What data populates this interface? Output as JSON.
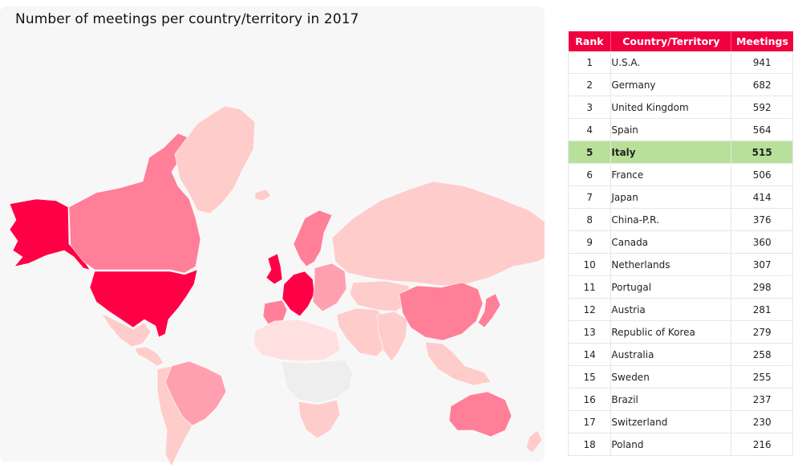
{
  "title": "Number of meetings per country/territory in 2017",
  "colors": {
    "accent": "#f0003f",
    "highlight": "#b8e09a",
    "max": "#ff0046",
    "high": "#ff7f99",
    "mid": "#ffa0b0",
    "low": "#ffcccc",
    "lowest": "#ffe0e0",
    "nodata": "#eeeeee"
  },
  "map": {
    "regions": [
      {
        "name": "Alaska",
        "level": "max"
      },
      {
        "name": "Canada",
        "level": "high"
      },
      {
        "name": "Greenland",
        "level": "low"
      },
      {
        "name": "USA",
        "level": "max"
      },
      {
        "name": "Mexico",
        "level": "low"
      },
      {
        "name": "Central America",
        "level": "low"
      },
      {
        "name": "Brazil",
        "level": "mid"
      },
      {
        "name": "South America",
        "level": "low"
      },
      {
        "name": "Iceland",
        "level": "low"
      },
      {
        "name": "Scandinavia",
        "level": "high"
      },
      {
        "name": "UK",
        "level": "max"
      },
      {
        "name": "Western Europe",
        "level": "max"
      },
      {
        "name": "Iberia",
        "level": "high"
      },
      {
        "name": "Eastern Europe",
        "level": "mid"
      },
      {
        "name": "Russia",
        "level": "low"
      },
      {
        "name": "Middle East",
        "level": "low"
      },
      {
        "name": "North Africa",
        "level": "lowest"
      },
      {
        "name": "Central Africa",
        "level": "nodata"
      },
      {
        "name": "Southern Africa",
        "level": "low"
      },
      {
        "name": "Central Asia",
        "level": "low"
      },
      {
        "name": "India",
        "level": "low"
      },
      {
        "name": "China",
        "level": "high"
      },
      {
        "name": "Japan",
        "level": "high"
      },
      {
        "name": "Southeast Asia",
        "level": "low"
      },
      {
        "name": "Australia",
        "level": "high"
      },
      {
        "name": "New Zealand",
        "level": "low"
      }
    ]
  },
  "table": {
    "headers": [
      "Rank",
      "Country/Territory",
      "Meetings"
    ],
    "rows": [
      {
        "rank": "1",
        "country": "U.S.A.",
        "meetings": "941"
      },
      {
        "rank": "2",
        "country": "Germany",
        "meetings": "682"
      },
      {
        "rank": "3",
        "country": "United Kingdom",
        "meetings": "592"
      },
      {
        "rank": "4",
        "country": "Spain",
        "meetings": "564"
      },
      {
        "rank": "5",
        "country": "Italy",
        "meetings": "515",
        "highlight": true
      },
      {
        "rank": "6",
        "country": "France",
        "meetings": "506"
      },
      {
        "rank": "7",
        "country": "Japan",
        "meetings": "414"
      },
      {
        "rank": "8",
        "country": "China-P.R.",
        "meetings": "376"
      },
      {
        "rank": "9",
        "country": "Canada",
        "meetings": "360"
      },
      {
        "rank": "10",
        "country": "Netherlands",
        "meetings": "307"
      },
      {
        "rank": "11",
        "country": "Portugal",
        "meetings": "298"
      },
      {
        "rank": "12",
        "country": "Austria",
        "meetings": "281"
      },
      {
        "rank": "13",
        "country": "Republic of Korea",
        "meetings": "279"
      },
      {
        "rank": "14",
        "country": "Australia",
        "meetings": "258"
      },
      {
        "rank": "15",
        "country": "Sweden",
        "meetings": "255"
      },
      {
        "rank": "16",
        "country": "Brazil",
        "meetings": "237"
      },
      {
        "rank": "17",
        "country": "Switzerland",
        "meetings": "230"
      },
      {
        "rank": "18",
        "country": "Poland",
        "meetings": "216"
      }
    ]
  },
  "chart_data": {
    "type": "table",
    "title": "Number of meetings per country/territory in 2017",
    "columns": [
      "Rank",
      "Country/Territory",
      "Meetings"
    ],
    "categories": [
      "U.S.A.",
      "Germany",
      "United Kingdom",
      "Spain",
      "Italy",
      "France",
      "Japan",
      "China-P.R.",
      "Canada",
      "Netherlands",
      "Portugal",
      "Austria",
      "Republic of Korea",
      "Australia",
      "Sweden",
      "Brazil",
      "Switzerland",
      "Poland"
    ],
    "values": [
      941,
      682,
      592,
      564,
      515,
      506,
      414,
      376,
      360,
      307,
      298,
      281,
      279,
      258,
      255,
      237,
      230,
      216
    ]
  }
}
